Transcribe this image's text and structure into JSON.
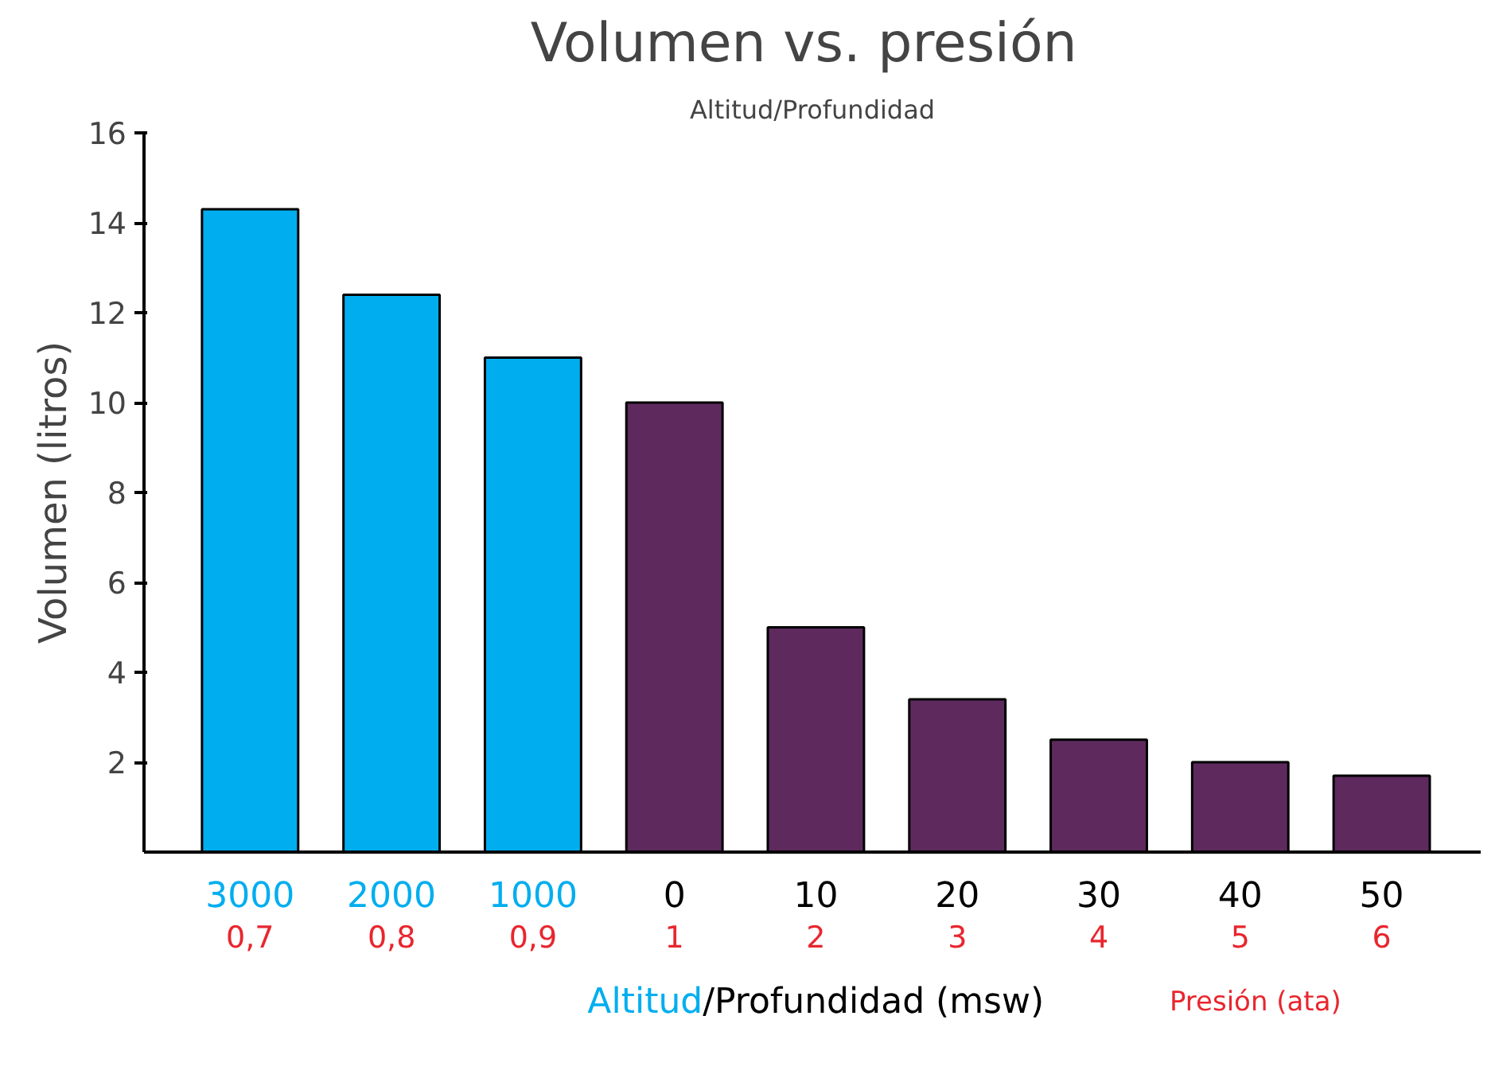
{
  "chart_data": {
    "type": "bar",
    "title": "Volumen  vs. presión",
    "subtitle": "Altitud/Profundidad",
    "categories": [
      "3000\n0,7",
      "2000\n0,8",
      "1000\n0,9",
      "0\n1",
      "10\n2",
      "20\n3",
      "30\n4",
      "40\n5",
      "50\n6"
    ],
    "values": [
      14.3,
      12.4,
      11.0,
      10.0,
      5.0,
      3.4,
      2.5,
      2.0,
      1.7
    ],
    "colors": [
      "#00aeef",
      "#00aeef",
      "#00aeef",
      "#5e2a5e",
      "#5e2a5e",
      "#5e2a5e",
      "#5e2a5e",
      "#5e2a5e",
      "#5e2a5e"
    ],
    "ylim": [
      0,
      16
    ],
    "yticks": [
      2,
      4,
      6,
      8,
      10,
      12,
      14,
      16
    ],
    "xlabel": "Altitud/Profundidad (msw)",
    "ylabel": "Volumen (litros)",
    "annotations": [
      "Presión (ata)"
    ],
    "grid": false
  }
}
